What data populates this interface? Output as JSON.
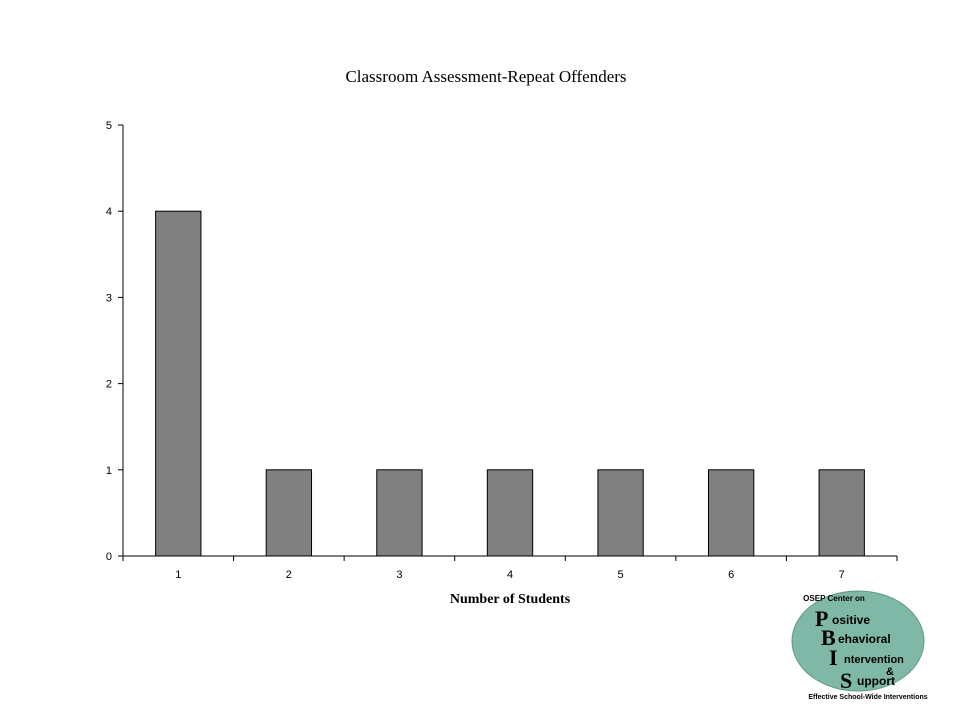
{
  "chart_data": {
    "type": "bar",
    "title": "Classroom Assessment-Repeat Offenders",
    "xlabel": "Number of Students",
    "ylabel": "",
    "categories": [
      "1",
      "2",
      "3",
      "4",
      "5",
      "6",
      "7"
    ],
    "values": [
      4,
      1,
      1,
      1,
      1,
      1,
      1
    ],
    "ylim": [
      0,
      5
    ],
    "yticks": [
      "0",
      "1",
      "2",
      "3",
      "4",
      "5"
    ],
    "grid": false,
    "legend": "none",
    "bar_color": "#808080"
  },
  "logo": {
    "header": "OSEP Center on",
    "letter_p": "P",
    "word_p": "ositive",
    "letter_b": "B",
    "word_b": "ehavioral",
    "letter_i": "I",
    "word_i": "ntervention",
    "amp": "&",
    "letter_s": "S",
    "word_s": "upport",
    "footer": "Effective School-Wide Interventions",
    "color": "#7fb8a6"
  }
}
